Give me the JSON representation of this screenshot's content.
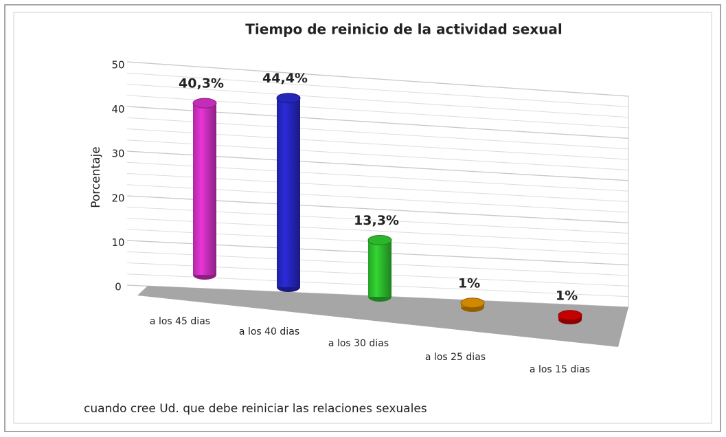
{
  "chart_data": {
    "type": "bar3d",
    "title": "Tiempo de reinicio de la actividad  sexual",
    "ylabel": "Porcentaje",
    "xlabel": "cuando cree Ud. que debe reiniciar  las relaciones  sexuales",
    "categories": [
      "a los 45 dias",
      "a los 40 dias",
      "a los 30 dias",
      "a los 25 dias",
      "a los 15 dias"
    ],
    "values": [
      40.3,
      44.4,
      13.3,
      1,
      1
    ],
    "value_labels": [
      "40,3%",
      "44,4%",
      "13,3%",
      "1%",
      "1%"
    ],
    "colors": [
      "#e835d8",
      "#2b2bd9",
      "#33d633",
      "#f5a000",
      "#e80000"
    ],
    "ylim": [
      0,
      50
    ],
    "yticks": [
      0,
      10,
      20,
      30,
      40,
      50
    ],
    "grid": true
  }
}
